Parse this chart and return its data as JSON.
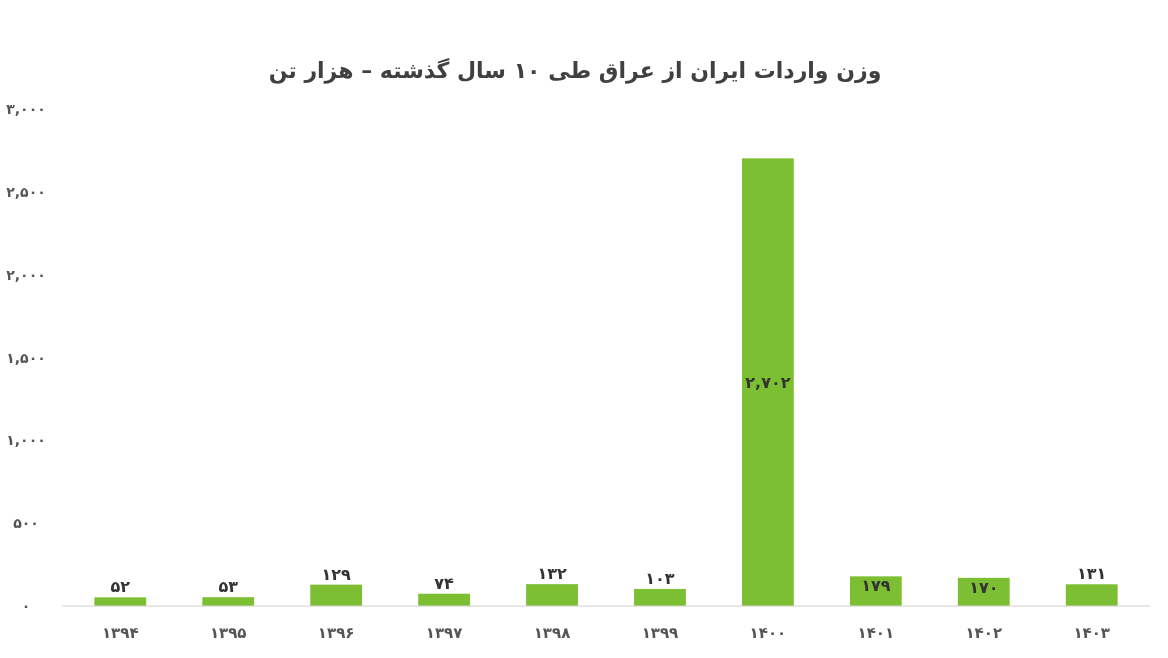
{
  "chart_data": {
    "type": "bar",
    "title": "وزن واردات ایران از عراق طی ۱۰ سال گذشته – هزار تن",
    "categories": [
      "۱۳۹۴",
      "۱۳۹۵",
      "۱۳۹۶",
      "۱۳۹۷",
      "۱۳۹۸",
      "۱۳۹۹",
      "۱۴۰۰",
      "۱۴۰۱",
      "۱۴۰۲",
      "۱۴۰۳"
    ],
    "values": [
      52,
      53,
      129,
      74,
      132,
      103,
      2702,
      179,
      170,
      131
    ],
    "value_labels": [
      "۵۲",
      "۵۳",
      "۱۲۹",
      "۷۴",
      "۱۳۲",
      "۱۰۳",
      "۲,۷۰۲",
      "۱۷۹",
      "۱۷۰",
      "۱۳۱"
    ],
    "color": "#7cbf33",
    "ylim": [
      0,
      3000
    ],
    "yticks": [
      {
        "value": 0,
        "label": "۰"
      },
      {
        "value": 500,
        "label": "۵۰۰"
      },
      {
        "value": 1000,
        "label": "۱,۰۰۰"
      },
      {
        "value": 1500,
        "label": "۱,۵۰۰"
      },
      {
        "value": 2000,
        "label": "۲,۰۰۰"
      },
      {
        "value": 2500,
        "label": "۲,۵۰۰"
      },
      {
        "value": 3000,
        "label": "۳,۰۰۰"
      }
    ],
    "grid": false
  }
}
